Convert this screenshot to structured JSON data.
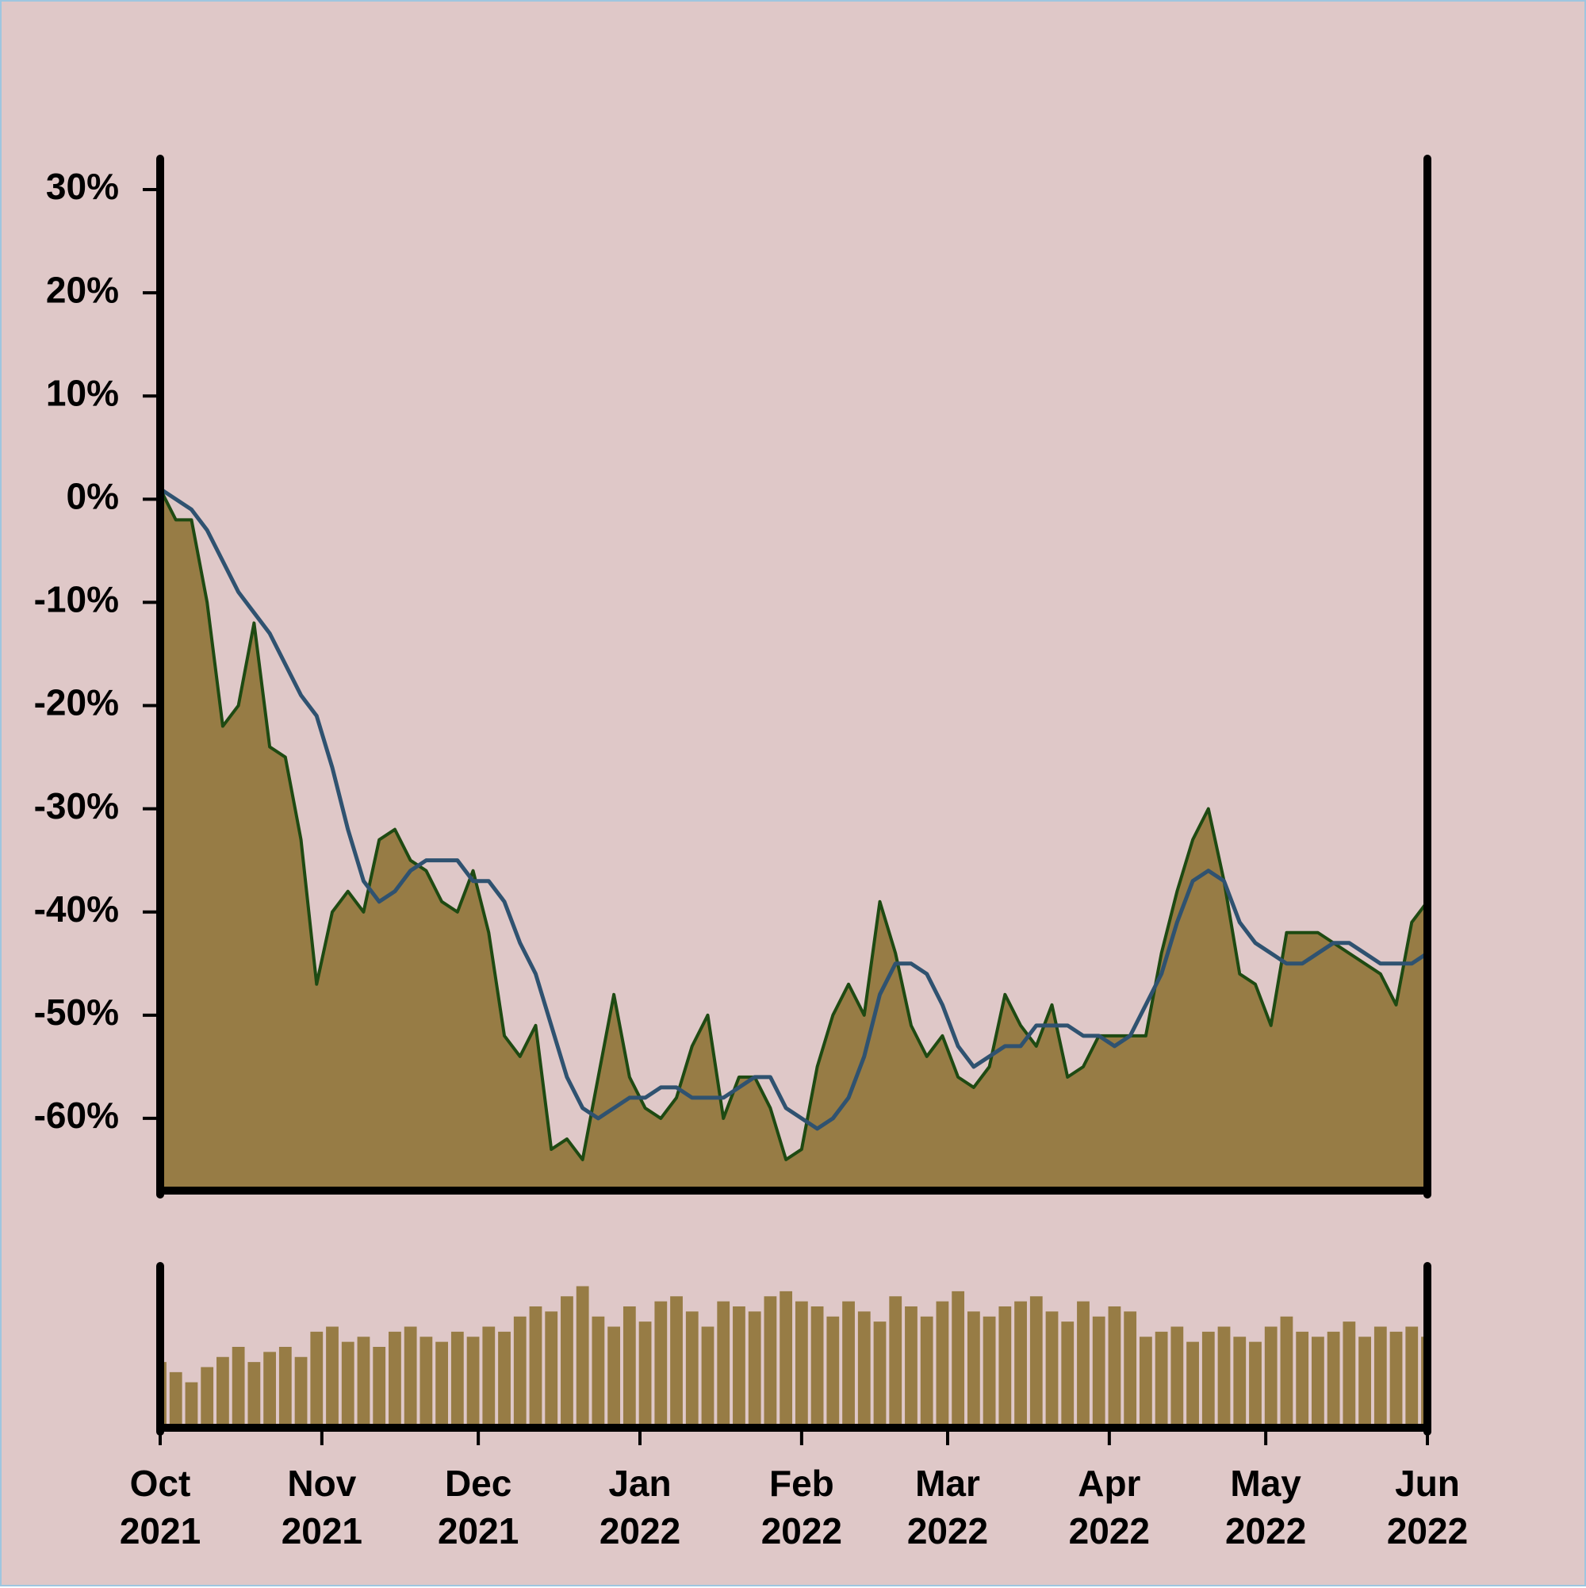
{
  "chart_data": [
    {
      "type": "area",
      "x": [
        0,
        3,
        6,
        9,
        12,
        15,
        18,
        21,
        24,
        27,
        30,
        33,
        36,
        39,
        42,
        45,
        48,
        51,
        54,
        57,
        60,
        63,
        66,
        69,
        72,
        75,
        78,
        81,
        84,
        87,
        90,
        93,
        96,
        99,
        102,
        105,
        108,
        111,
        114,
        117,
        120,
        123,
        126,
        129,
        132,
        135,
        138,
        141,
        144,
        147,
        150,
        153,
        156,
        159,
        162,
        165,
        168,
        171,
        174,
        177,
        180,
        183,
        186,
        189,
        192,
        195,
        198,
        201,
        204,
        207,
        210,
        213,
        216,
        219,
        222,
        225,
        228,
        231,
        234,
        237,
        240,
        243
      ],
      "series": [
        {
          "color": "#1e4a12",
          "fill": "#977c45",
          "values": [
            1,
            -2,
            -2,
            -10,
            -22,
            -20,
            -12,
            -24,
            -25,
            -33,
            -47,
            -40,
            -38,
            -40,
            -33,
            -32,
            -35,
            -36,
            -39,
            -40,
            -36,
            -42,
            -52,
            -54,
            -51,
            -63,
            -62,
            -64,
            -56,
            -48,
            -56,
            -59,
            -60,
            -58,
            -53,
            -50,
            -60,
            -56,
            -56,
            -59,
            -64,
            -63,
            -55,
            -50,
            -47,
            -50,
            -39,
            -44,
            -51,
            -54,
            -52,
            -56,
            -57,
            -55,
            -48,
            -51,
            -53,
            -49,
            -56,
            -55,
            -52,
            -52,
            -52,
            -52,
            -44,
            -38,
            -33,
            -30,
            -37,
            -46,
            -47,
            -51,
            -42,
            -42,
            -42,
            -43,
            -44,
            -45,
            -46,
            -49,
            -41,
            -39
          ]
        },
        {
          "color": "#2f5270",
          "values": [
            1,
            0,
            -1,
            -3,
            -6,
            -9,
            -11,
            -13,
            -16,
            -19,
            -21,
            -26,
            -32,
            -37,
            -39,
            -38,
            -36,
            -35,
            -35,
            -35,
            -37,
            -37,
            -39,
            -43,
            -46,
            -51,
            -56,
            -59,
            -60,
            -59,
            -58,
            -58,
            -57,
            -57,
            -58,
            -58,
            -58,
            -57,
            -56,
            -56,
            -59,
            -60,
            -61,
            -60,
            -58,
            -54,
            -48,
            -45,
            -45,
            -46,
            -49,
            -53,
            -55,
            -54,
            -53,
            -53,
            -51,
            -51,
            -51,
            -52,
            -52,
            -53,
            -52,
            -49,
            -46,
            -41,
            -37,
            -36,
            -37,
            -41,
            -43,
            -44,
            -45,
            -45,
            -44,
            -43,
            -43,
            -44,
            -45,
            -45,
            -45,
            -44
          ]
        }
      ],
      "xlim": [
        0,
        243
      ],
      "ylim": [
        -67,
        33
      ],
      "yticks": [
        {
          "value": -60,
          "label": "-60%"
        },
        {
          "value": -50,
          "label": "-50%"
        },
        {
          "value": -40,
          "label": "-40%"
        },
        {
          "value": -30,
          "label": "-30%"
        },
        {
          "value": -20,
          "label": "-20%"
        },
        {
          "value": -10,
          "label": "-10%"
        },
        {
          "value": 0,
          "label": "0%"
        },
        {
          "value": 10,
          "label": "10%"
        },
        {
          "value": 20,
          "label": "20%"
        },
        {
          "value": 30,
          "label": "30%"
        }
      ]
    },
    {
      "type": "bar",
      "x": [
        0,
        3,
        6,
        9,
        12,
        15,
        18,
        21,
        24,
        27,
        30,
        33,
        36,
        39,
        42,
        45,
        48,
        51,
        54,
        57,
        60,
        63,
        66,
        69,
        72,
        75,
        78,
        81,
        84,
        87,
        90,
        93,
        96,
        99,
        102,
        105,
        108,
        111,
        114,
        117,
        120,
        123,
        126,
        129,
        132,
        135,
        138,
        141,
        144,
        147,
        150,
        153,
        156,
        159,
        162,
        165,
        168,
        171,
        174,
        177,
        180,
        183,
        186,
        189,
        192,
        195,
        198,
        201,
        204,
        207,
        210,
        213,
        216,
        219,
        222,
        225,
        228,
        231,
        234,
        237,
        240,
        243
      ],
      "values": [
        65,
        55,
        45,
        60,
        70,
        80,
        65,
        75,
        80,
        70,
        95,
        100,
        85,
        90,
        80,
        95,
        100,
        90,
        85,
        95,
        90,
        100,
        95,
        110,
        120,
        115,
        130,
        140,
        110,
        100,
        120,
        105,
        125,
        130,
        115,
        100,
        125,
        120,
        115,
        130,
        135,
        125,
        120,
        110,
        125,
        115,
        105,
        130,
        120,
        110,
        125,
        135,
        115,
        110,
        120,
        125,
        130,
        115,
        105,
        125,
        110,
        120,
        115,
        90,
        95,
        100,
        85,
        95,
        100,
        90,
        85,
        100,
        110,
        95,
        90,
        95,
        105,
        90,
        100,
        95,
        100,
        90
      ],
      "color": "#977c45",
      "xlim": [
        0,
        243
      ],
      "ylim": [
        0,
        160
      ],
      "xticks": [
        {
          "value": 0,
          "label": "Oct\n2021"
        },
        {
          "value": 31,
          "label": "Nov\n2021"
        },
        {
          "value": 61,
          "label": "Dec\n2021"
        },
        {
          "value": 92,
          "label": "Jan\n2022"
        },
        {
          "value": 123,
          "label": "Feb\n2022"
        },
        {
          "value": 151,
          "label": "Mar\n2022"
        },
        {
          "value": 182,
          "label": "Apr\n2022"
        },
        {
          "value": 212,
          "label": "May\n2022"
        },
        {
          "value": 243,
          "label": "Jun\n2022"
        }
      ]
    }
  ]
}
